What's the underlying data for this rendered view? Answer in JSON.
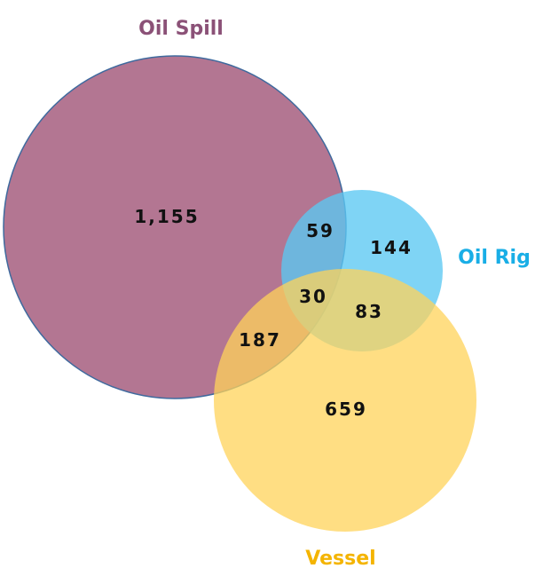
{
  "chart_data": {
    "type": "venn",
    "sets": [
      {
        "key": "oil_spill",
        "name": "Oil Spill",
        "color": "#9e4f73",
        "label_color": "#8b5177"
      },
      {
        "key": "oil_rig",
        "name": "Oil Rig",
        "color": "#5bc8f2",
        "label_color": "#19aee6"
      },
      {
        "key": "vessel",
        "name": "Vessel",
        "color": "#ffd35a",
        "label_color": "#f4b400"
      }
    ],
    "regions": {
      "oil_spill_only": "1,155",
      "oil_spill_oil_rig": "59",
      "oil_rig_only": "144",
      "all_three": "30",
      "oil_rig_vessel": "83",
      "oil_spill_vessel": "187",
      "vessel_only": "659"
    }
  }
}
